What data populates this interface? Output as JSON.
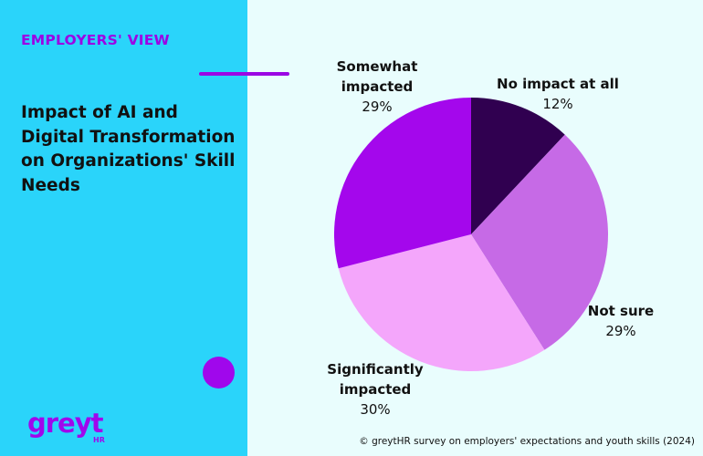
{
  "header": {
    "tag": "EMPLOYERS' VIEW",
    "headline": "Impact of AI and Digital Transformation on Organizations' Skill Needs"
  },
  "logo": {
    "text": "greyt",
    "subtext": "HR",
    "icon": "greythr-logo"
  },
  "footer": {
    "source": "© greytHR survey on employers' expectations and youth skills (2024)"
  },
  "colors": {
    "panel": "#2ad4fa",
    "accent": "#9b05e4",
    "background": "#e9fdfd"
  },
  "chart_data": {
    "type": "pie",
    "title": "",
    "start_angle_deg": 0,
    "direction": "clockwise",
    "slices": [
      {
        "label": [
          "No impact at all"
        ],
        "value": 12,
        "display": "12%",
        "color": "#300050"
      },
      {
        "label": [
          "Not sure"
        ],
        "value": 29,
        "display": "29%",
        "color": "#c66ae6"
      },
      {
        "label": [
          "Significantly",
          "impacted"
        ],
        "value": 30,
        "display": "30%",
        "color": "#f4a6fb"
      },
      {
        "label": [
          "Somewhat",
          "impacted"
        ],
        "value": 29,
        "display": "29%",
        "color": "#a407ec"
      }
    ]
  }
}
